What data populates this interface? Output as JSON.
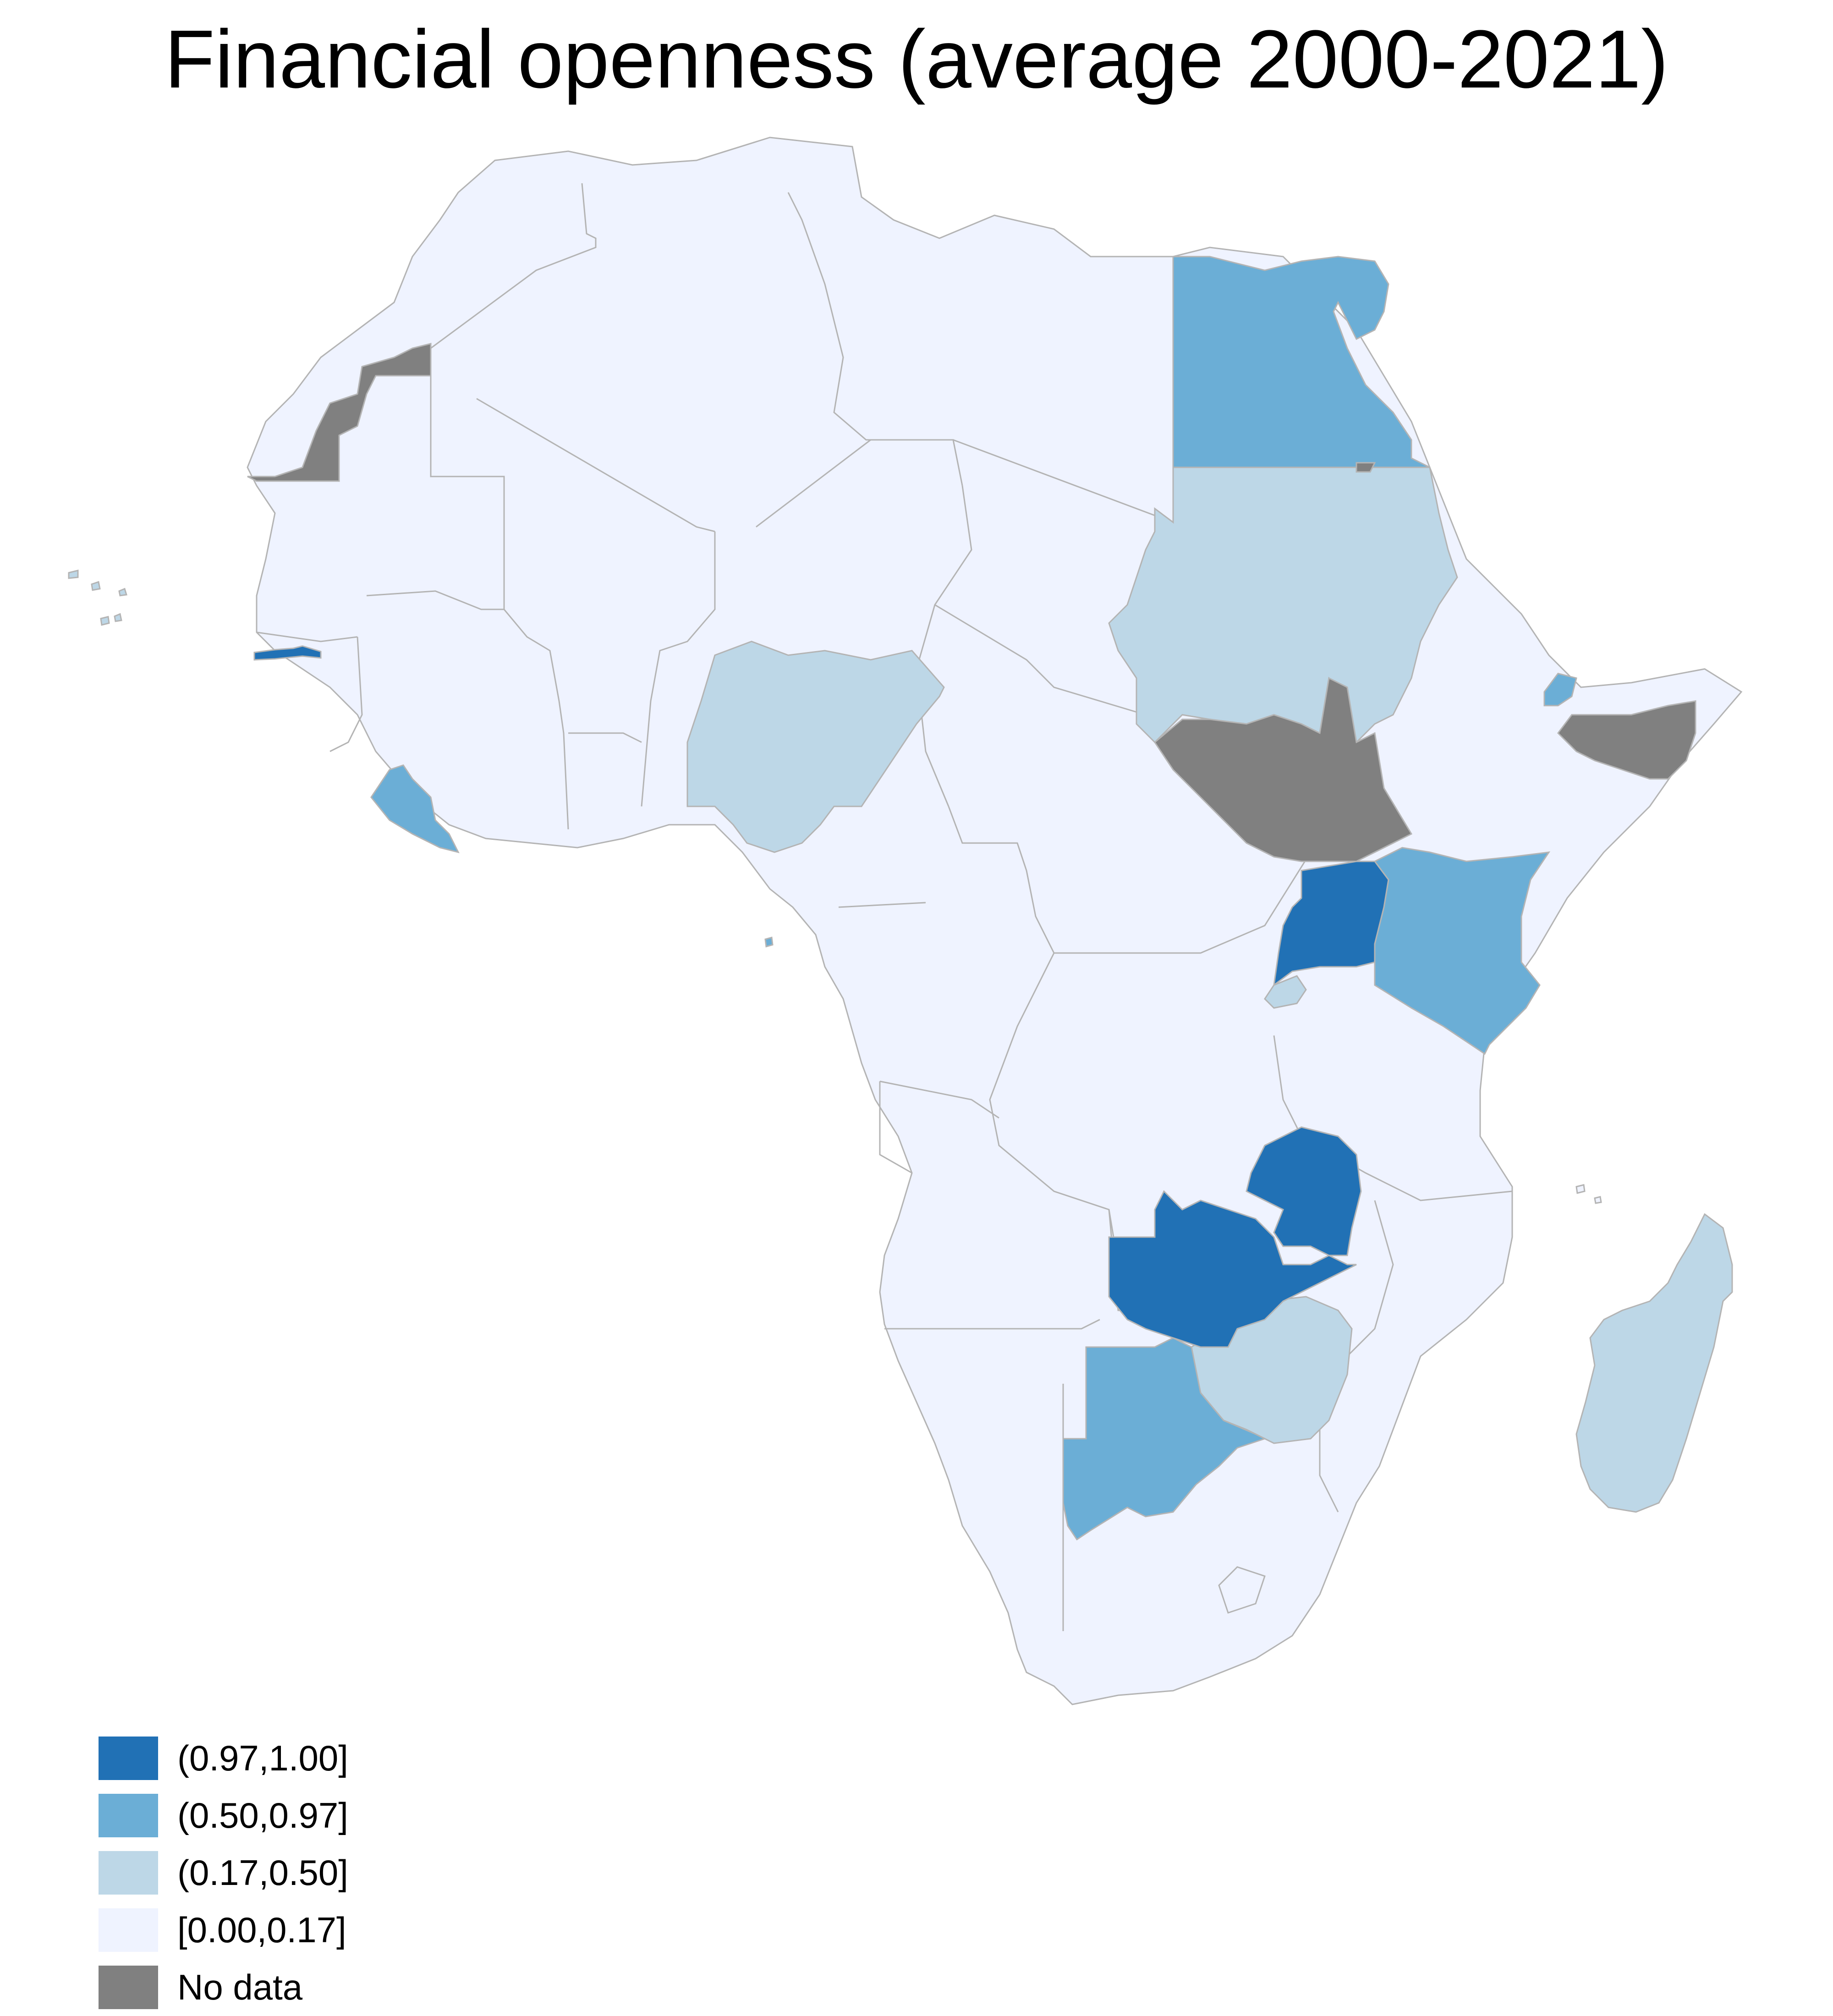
{
  "title": "Financial openness (average 2000-2021)",
  "legend": {
    "items": [
      {
        "label": "(0.97,1.00]",
        "color": "#2171b5"
      },
      {
        "label": "(0.50,0.97]",
        "color": "#6baed6"
      },
      {
        "label": "(0.17,0.50]",
        "color": "#bdd7e7"
      },
      {
        "label": "[0.00,0.17]",
        "color": "#eff3ff"
      },
      {
        "label": "No data",
        "color": "#808080"
      }
    ]
  },
  "colors": {
    "bin_top": "#2171b5",
    "bin_high": "#6baed6",
    "bin_mid": "#bdd7e7",
    "bin_low": "#eff3ff",
    "no_data": "#808080",
    "border": "#b4b4b4"
  },
  "map_data": {
    "region": "Africa",
    "countries": [
      {
        "name": "Gambia",
        "class": "(0.97,1.00]"
      },
      {
        "name": "Uganda",
        "class": "(0.97,1.00]"
      },
      {
        "name": "Zambia",
        "class": "(0.97,1.00]"
      },
      {
        "name": "Malawi",
        "class": "(0.97,1.00]"
      },
      {
        "name": "Egypt",
        "class": "(0.50,0.97]"
      },
      {
        "name": "Liberia",
        "class": "(0.50,0.97]"
      },
      {
        "name": "Kenya",
        "class": "(0.50,0.97]"
      },
      {
        "name": "Botswana",
        "class": "(0.50,0.97]"
      },
      {
        "name": "Djibouti",
        "class": "(0.50,0.97]"
      },
      {
        "name": "Sao Tome and Principe",
        "class": "(0.50,0.97]"
      },
      {
        "name": "Sudan",
        "class": "(0.17,0.50]"
      },
      {
        "name": "Nigeria",
        "class": "(0.17,0.50]"
      },
      {
        "name": "Zimbabwe",
        "class": "(0.17,0.50]"
      },
      {
        "name": "Madagascar",
        "class": "(0.17,0.50]"
      },
      {
        "name": "Rwanda",
        "class": "(0.17,0.50]"
      },
      {
        "name": "Cabo Verde",
        "class": "(0.17,0.50]"
      },
      {
        "name": "Western Sahara",
        "class": "No data"
      },
      {
        "name": "South Sudan",
        "class": "No data"
      },
      {
        "name": "Somalia",
        "class": "No data"
      },
      {
        "name": "Bir Tawil",
        "class": "No data"
      },
      {
        "name": "Other countries",
        "class": "[0.00,0.17]"
      }
    ]
  }
}
